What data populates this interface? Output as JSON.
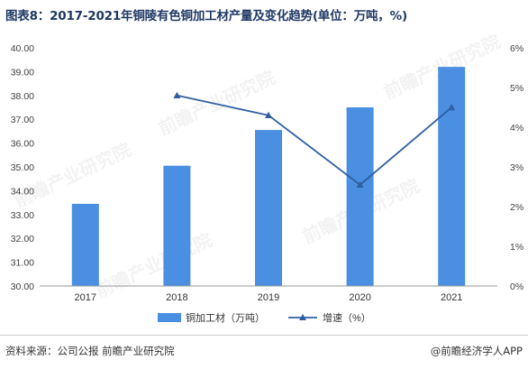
{
  "title": "图表8：2017-2021年铜陵有色铜加工材产量及变化趋势(单位：万吨，%)",
  "colors": {
    "bar": "#4a8fe2",
    "line": "#2e5fa0",
    "title": "#1f3864"
  },
  "chart_data": {
    "type": "bar",
    "categories": [
      "2017",
      "2018",
      "2019",
      "2020",
      "2021"
    ],
    "series": [
      {
        "name": "铜加工材（万吨）",
        "type": "bar",
        "axis": "left",
        "values": [
          33.45,
          35.05,
          36.55,
          37.5,
          39.2
        ]
      },
      {
        "name": "增速（%）",
        "type": "line",
        "axis": "right",
        "marker": "triangle",
        "values": [
          null,
          4.8,
          4.3,
          2.55,
          4.5
        ]
      }
    ],
    "y_left": {
      "min": 30,
      "max": 40,
      "ticks": [
        "30.00",
        "31.00",
        "32.00",
        "33.00",
        "34.00",
        "35.00",
        "36.00",
        "37.00",
        "38.00",
        "39.00",
        "40.00"
      ]
    },
    "y_right": {
      "min": 0,
      "max": 6,
      "ticks": [
        "0%",
        "1%",
        "2%",
        "3%",
        "4%",
        "5%",
        "6%"
      ]
    },
    "grid": false,
    "legend_position": "bottom"
  },
  "watermark": "前瞻产业研究院",
  "footer": {
    "source": "资料来源：公司公报 前瞻产业研究院",
    "brand": "@前瞻经济学人APP"
  }
}
